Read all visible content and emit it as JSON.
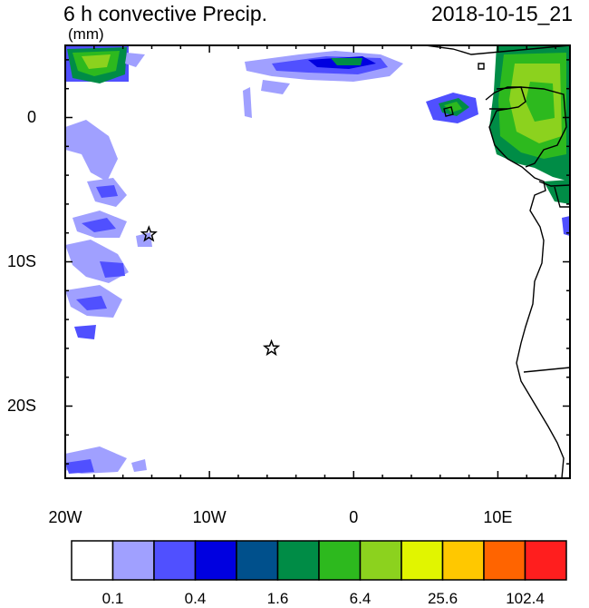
{
  "title": "6 h convective Precip.",
  "datetime": "2018-10-15_21",
  "units": "(mm)",
  "map": {
    "lon_range": [
      -20,
      15
    ],
    "lat_range": [
      -25,
      5
    ],
    "x_tick_labels": [
      "20W",
      "10W",
      "0",
      "10E"
    ],
    "y_tick_labels": [
      "0",
      "10S",
      "20S"
    ],
    "markers": [
      {
        "name": "star-marker-1",
        "lon": -14.2,
        "lat": -8.1
      },
      {
        "name": "star-marker-2",
        "lon": -5.7,
        "lat": -16.0
      }
    ]
  },
  "colorbar": {
    "colors": [
      "#ffffff",
      "#a0a0ff",
      "#5050ff",
      "#0000e0",
      "#00508c",
      "#008c46",
      "#2db91e",
      "#8cd21e",
      "#e1f500",
      "#ffc800",
      "#ff6400",
      "#ff1e1e"
    ],
    "labels": [
      "0.1",
      "0.4",
      "1.6",
      "6.4",
      "25.6",
      "102.4"
    ]
  }
}
